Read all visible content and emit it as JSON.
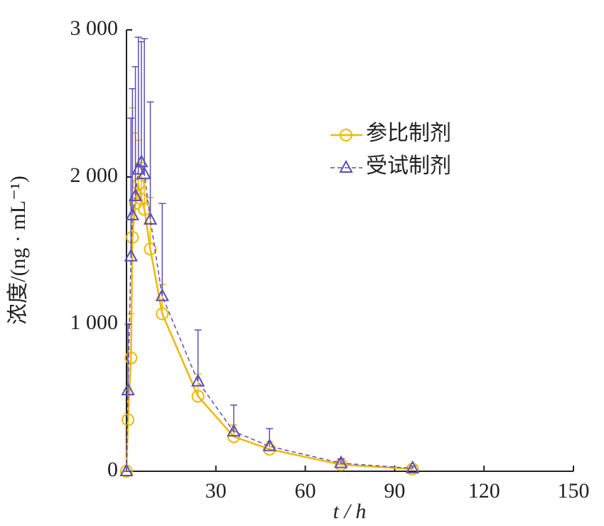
{
  "chart_data": {
    "type": "line",
    "x": [
      0,
      0.5,
      1.5,
      2,
      3,
      4,
      5,
      6,
      8,
      12,
      24,
      36,
      48,
      72,
      96
    ],
    "series": [
      {
        "name": "参比制剂",
        "color": "#f2b705",
        "marker": "circle",
        "dashed": false,
        "values": [
          0,
          350,
          770,
          1590,
          1820,
          1950,
          1850,
          1780,
          1510,
          1070,
          510,
          235,
          150,
          45,
          15
        ],
        "errors": [
          0,
          200,
          300,
          880,
          480,
          300,
          250,
          200,
          350,
          200,
          150,
          80,
          50,
          20,
          10
        ]
      },
      {
        "name": "受试制剂",
        "color": "#5b4fb8",
        "marker": "triangle",
        "dashed": true,
        "values": [
          0,
          550,
          1460,
          1740,
          1870,
          2050,
          2100,
          2020,
          1710,
          1190,
          610,
          270,
          170,
          55,
          20
        ],
        "errors": [
          0,
          450,
          940,
          860,
          880,
          900,
          820,
          920,
          800,
          630,
          350,
          180,
          120,
          30,
          15
        ]
      }
    ],
    "xlabel": "t / h",
    "ylabel": "浓度/(ng · mL⁻¹)",
    "xlim": [
      0,
      150
    ],
    "ylim": [
      0,
      3000
    ],
    "xticks": [
      30,
      60,
      90,
      120,
      150
    ],
    "yticks": [
      {
        "value": 0,
        "label": "0"
      },
      {
        "value": 1000,
        "label": "1 000"
      },
      {
        "value": 2000,
        "label": "2 000"
      },
      {
        "value": 3000,
        "label": "3 000"
      }
    ],
    "legend": "upper right"
  }
}
